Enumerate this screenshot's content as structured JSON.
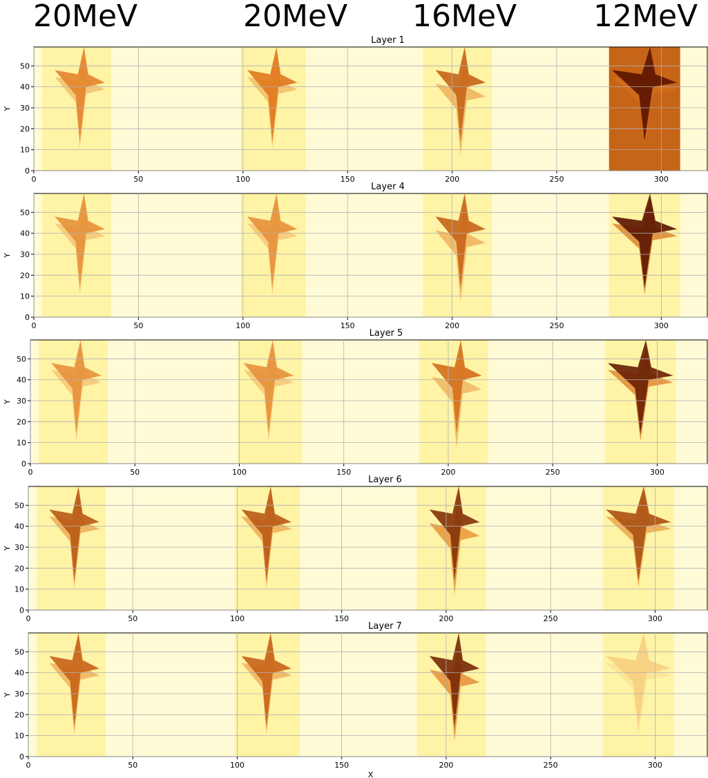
{
  "energy_labels": [
    "20MeV",
    "20MeV",
    "16MeV",
    "12MeV"
  ],
  "chart_data": [
    {
      "type": "heatmap",
      "title": "Layer 1",
      "ylabel": "Y",
      "xlim": [
        0,
        322
      ],
      "ylim": [
        0,
        59
      ],
      "xticks": [
        0,
        50,
        100,
        150,
        200,
        250,
        300
      ],
      "yticks": [
        0,
        10,
        20,
        30,
        40,
        50
      ],
      "grid": true
    },
    {
      "type": "heatmap",
      "title": "Layer 4",
      "ylabel": "Y",
      "xlim": [
        0,
        322
      ],
      "ylim": [
        0,
        59
      ],
      "xticks": [
        0,
        50,
        100,
        150,
        200,
        250,
        300
      ],
      "yticks": [
        0,
        10,
        20,
        30,
        40,
        50
      ],
      "grid": true
    },
    {
      "type": "heatmap",
      "title": "Layer 5",
      "ylabel": "Y",
      "xlim": [
        0,
        324
      ],
      "ylim": [
        0,
        59
      ],
      "xticks": [
        0,
        50,
        100,
        150,
        200,
        250,
        300
      ],
      "yticks": [
        0,
        10,
        20,
        30,
        40,
        50
      ],
      "grid": true
    },
    {
      "type": "heatmap",
      "title": "Layer 6",
      "ylabel": "Y",
      "xlim": [
        0,
        325
      ],
      "ylim": [
        0,
        59
      ],
      "xticks": [
        0,
        50,
        100,
        150,
        200,
        250,
        300
      ],
      "yticks": [
        0,
        10,
        20,
        30,
        40,
        50
      ],
      "grid": true
    },
    {
      "type": "heatmap",
      "title": "Layer 7",
      "ylabel": "Y",
      "xlabel": "X",
      "xlim": [
        0,
        325
      ],
      "ylim": [
        0,
        59
      ],
      "xticks": [
        0,
        50,
        100,
        150,
        200,
        250,
        300
      ],
      "yticks": [
        0,
        10,
        20,
        30,
        40,
        50
      ],
      "grid": true
    }
  ]
}
